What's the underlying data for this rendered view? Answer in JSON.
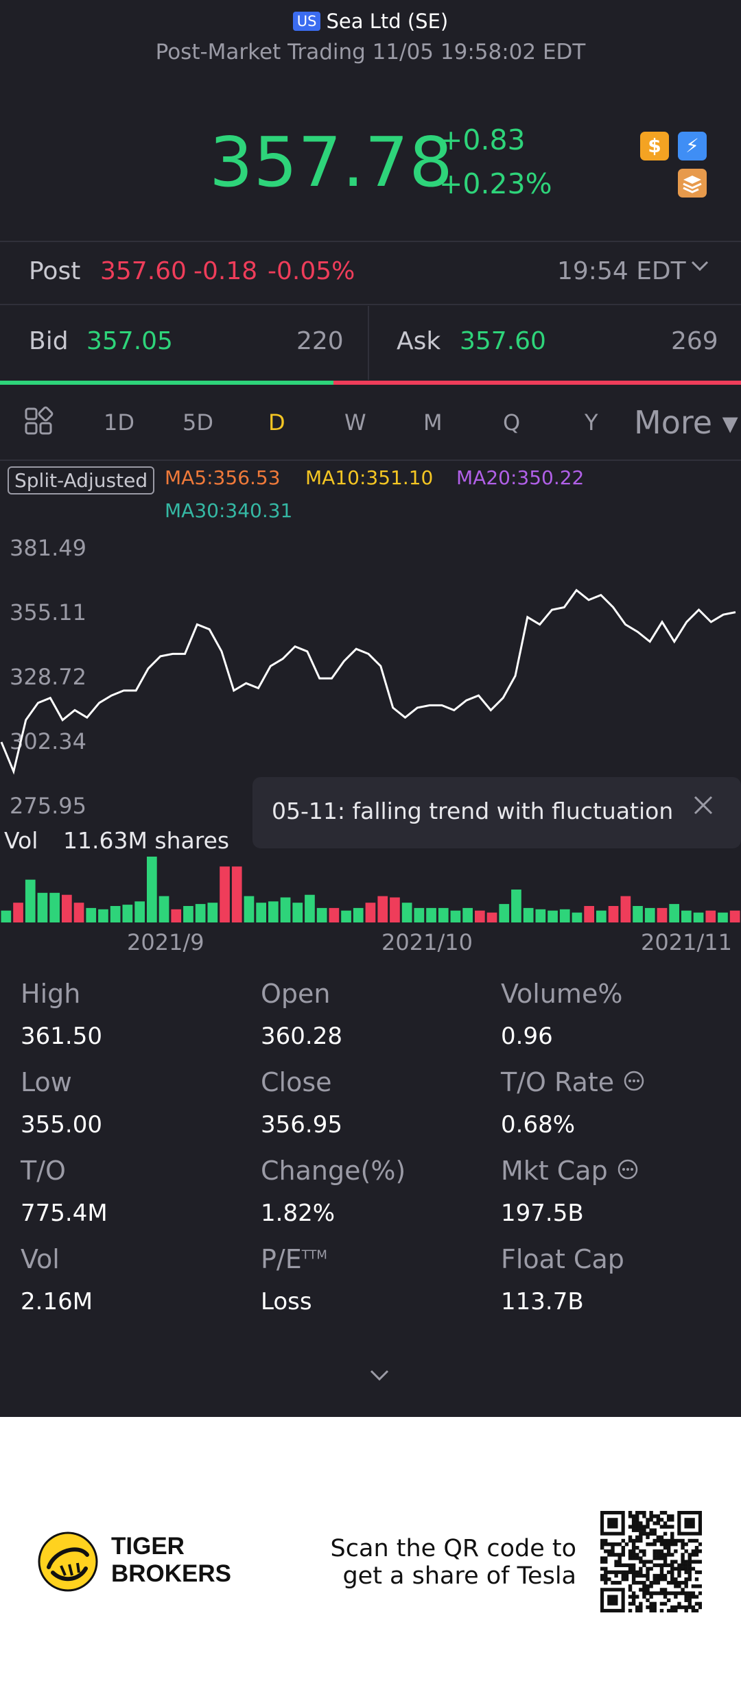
{
  "header": {
    "market_badge": "US",
    "title": "Sea Ltd (SE)",
    "status": "Post-Market Trading 11/05 19:58:02 EDT"
  },
  "quote": {
    "price": "357.78",
    "change": "+0.83",
    "change_pct": "+0.23%",
    "badges": [
      "dollar-icon",
      "lightning-icon",
      "stack-icon"
    ],
    "badge_dollar": "$",
    "badge_lightning": "⚡"
  },
  "post": {
    "label": "Post",
    "price": "357.60",
    "change": "-0.18",
    "change_pct": "-0.05%",
    "time": "19:54 EDT"
  },
  "bid_ask": {
    "bid_label": "Bid",
    "bid_price": "357.05",
    "bid_size": "220",
    "ask_label": "Ask",
    "ask_price": "357.60",
    "ask_size": "269",
    "bid_fraction": 0.45
  },
  "tabs": {
    "items": [
      "1D",
      "5D",
      "D",
      "W",
      "M",
      "Q",
      "Y"
    ],
    "active": "D",
    "more": "More ▾"
  },
  "indicators": {
    "adjust": "Split-Adjusted",
    "ma5": "MA5:356.53",
    "ma10": "MA10:351.10",
    "ma20": "MA20:350.22",
    "ma30": "MA30:340.31"
  },
  "chart_data": {
    "type": "line",
    "y_ticks": [
      "381.49",
      "355.11",
      "328.72",
      "302.34",
      "275.95"
    ],
    "ylim": [
      275.95,
      381.49
    ],
    "x_ticks": [
      "2021/9",
      "2021/10",
      "2021/11"
    ],
    "close_values": [
      302,
      290,
      311,
      318,
      320,
      311,
      315,
      312,
      318,
      321,
      323,
      323,
      332,
      337,
      338,
      338,
      350,
      348,
      339,
      323,
      326,
      324,
      333,
      336,
      341,
      339,
      328,
      328,
      335,
      340,
      338,
      333,
      316,
      312,
      316,
      317,
      317,
      315,
      319,
      321,
      315,
      320,
      329,
      353,
      350,
      356,
      357,
      364,
      360,
      362,
      357,
      350,
      347,
      343,
      351,
      343,
      351,
      356,
      351,
      354,
      355
    ],
    "volume_label": "Vol",
    "volume_value": "11.63M shares",
    "volume_bars": [
      {
        "v": 0.18,
        "c": "up"
      },
      {
        "v": 0.3,
        "c": "down"
      },
      {
        "v": 0.65,
        "c": "up"
      },
      {
        "v": 0.45,
        "c": "up"
      },
      {
        "v": 0.45,
        "c": "up"
      },
      {
        "v": 0.42,
        "c": "down"
      },
      {
        "v": 0.3,
        "c": "down"
      },
      {
        "v": 0.22,
        "c": "up"
      },
      {
        "v": 0.2,
        "c": "up"
      },
      {
        "v": 0.25,
        "c": "up"
      },
      {
        "v": 0.27,
        "c": "up"
      },
      {
        "v": 0.32,
        "c": "up"
      },
      {
        "v": 1.0,
        "c": "up"
      },
      {
        "v": 0.4,
        "c": "up"
      },
      {
        "v": 0.2,
        "c": "down"
      },
      {
        "v": 0.25,
        "c": "up"
      },
      {
        "v": 0.28,
        "c": "up"
      },
      {
        "v": 0.3,
        "c": "up"
      },
      {
        "v": 0.85,
        "c": "down"
      },
      {
        "v": 0.85,
        "c": "down"
      },
      {
        "v": 0.4,
        "c": "up"
      },
      {
        "v": 0.3,
        "c": "up"
      },
      {
        "v": 0.32,
        "c": "up"
      },
      {
        "v": 0.38,
        "c": "up"
      },
      {
        "v": 0.3,
        "c": "up"
      },
      {
        "v": 0.42,
        "c": "up"
      },
      {
        "v": 0.22,
        "c": "up"
      },
      {
        "v": 0.22,
        "c": "down"
      },
      {
        "v": 0.18,
        "c": "up"
      },
      {
        "v": 0.22,
        "c": "up"
      },
      {
        "v": 0.3,
        "c": "down"
      },
      {
        "v": 0.4,
        "c": "down"
      },
      {
        "v": 0.38,
        "c": "down"
      },
      {
        "v": 0.3,
        "c": "up"
      },
      {
        "v": 0.22,
        "c": "up"
      },
      {
        "v": 0.22,
        "c": "up"
      },
      {
        "v": 0.22,
        "c": "up"
      },
      {
        "v": 0.18,
        "c": "up"
      },
      {
        "v": 0.22,
        "c": "up"
      },
      {
        "v": 0.18,
        "c": "down"
      },
      {
        "v": 0.15,
        "c": "down"
      },
      {
        "v": 0.28,
        "c": "up"
      },
      {
        "v": 0.5,
        "c": "up"
      },
      {
        "v": 0.22,
        "c": "up"
      },
      {
        "v": 0.2,
        "c": "up"
      },
      {
        "v": 0.18,
        "c": "up"
      },
      {
        "v": 0.2,
        "c": "up"
      },
      {
        "v": 0.15,
        "c": "up"
      },
      {
        "v": 0.25,
        "c": "down"
      },
      {
        "v": 0.18,
        "c": "up"
      },
      {
        "v": 0.25,
        "c": "down"
      },
      {
        "v": 0.4,
        "c": "down"
      },
      {
        "v": 0.25,
        "c": "up"
      },
      {
        "v": 0.22,
        "c": "up"
      },
      {
        "v": 0.22,
        "c": "down"
      },
      {
        "v": 0.28,
        "c": "up"
      },
      {
        "v": 0.18,
        "c": "up"
      },
      {
        "v": 0.15,
        "c": "up"
      },
      {
        "v": 0.18,
        "c": "down"
      },
      {
        "v": 0.15,
        "c": "up"
      },
      {
        "v": 0.18,
        "c": "down"
      }
    ],
    "colors": {
      "up": "#2ed47a",
      "down": "#ef3d5a",
      "line": "#ffffff"
    },
    "annotation": "05-11: falling trend with fluctuation"
  },
  "stats": [
    {
      "label": "High",
      "value": "361.50"
    },
    {
      "label": "Open",
      "value": "360.28"
    },
    {
      "label": "Volume%",
      "value": "0.96"
    },
    {
      "label": "Low",
      "value": "355.00"
    },
    {
      "label": "Close",
      "value": "356.95"
    },
    {
      "label": "T/O Rate",
      "value": "0.68%"
    },
    {
      "label": "T/O",
      "value": "775.4M"
    },
    {
      "label": "Change(%)",
      "value": "1.82%"
    },
    {
      "label": "Mkt Cap",
      "value": "197.5B"
    },
    {
      "label": "Vol",
      "value": "2.16M"
    },
    {
      "label": "P/E",
      "label_sup": "TTM",
      "value": "Loss"
    },
    {
      "label": "Float Cap",
      "value": "113.7B"
    }
  ],
  "footer": {
    "brand_line1": "TIGER",
    "brand_line2": "BROKERS",
    "promo_line1": "Scan the QR code to",
    "promo_line2": "get a share of Tesla"
  }
}
